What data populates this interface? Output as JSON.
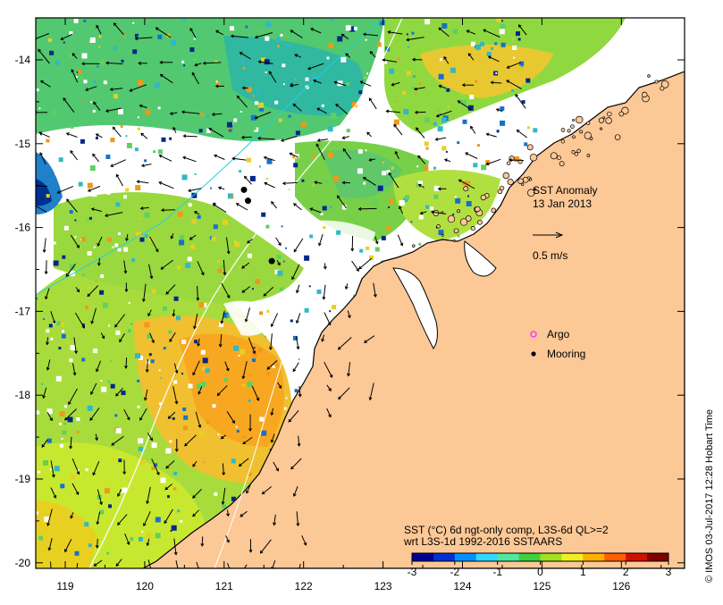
{
  "map": {
    "title": "SST Anomaly",
    "date": "13 Jan 2013",
    "scale_arrow_label": "0.5 m/s",
    "lon_ticks": [
      "119",
      "120",
      "121",
      "122",
      "123",
      "124",
      "125",
      "126"
    ],
    "lat_ticks": [
      "-14",
      "-15",
      "-16",
      "-17",
      "-18",
      "-19",
      "-20"
    ],
    "legend": {
      "argo_label": "Argo",
      "mooring_label": "Mooring",
      "argo_color": "#ff33ff",
      "mooring_color": "#000000"
    },
    "colorbar": {
      "title_line1": "SST (°C) 6d ngt-only comp, L3S-6d QL>=2",
      "title_line2": "wrt L3S-1d 1992-2016 SSTAARS",
      "tick_labels": [
        "-3",
        "-2",
        "-1",
        "0",
        "1",
        "2",
        "3"
      ],
      "colors": [
        "#000090",
        "#0030d0",
        "#0090ff",
        "#30d8ff",
        "#50e8a0",
        "#40d040",
        "#a0e020",
        "#f0f020",
        "#ffb000",
        "#ff6000",
        "#d01000",
        "#800000"
      ]
    },
    "credit": "© IMOS 03-Jul-2017 12:28 Hobart Time",
    "land_color": "#fcc896",
    "mooring_sites": [
      {
        "lon": 121.25,
        "lat": -15.55
      },
      {
        "lon": 121.3,
        "lat": -15.68
      },
      {
        "lon": 121.6,
        "lat": -16.4
      }
    ]
  }
}
